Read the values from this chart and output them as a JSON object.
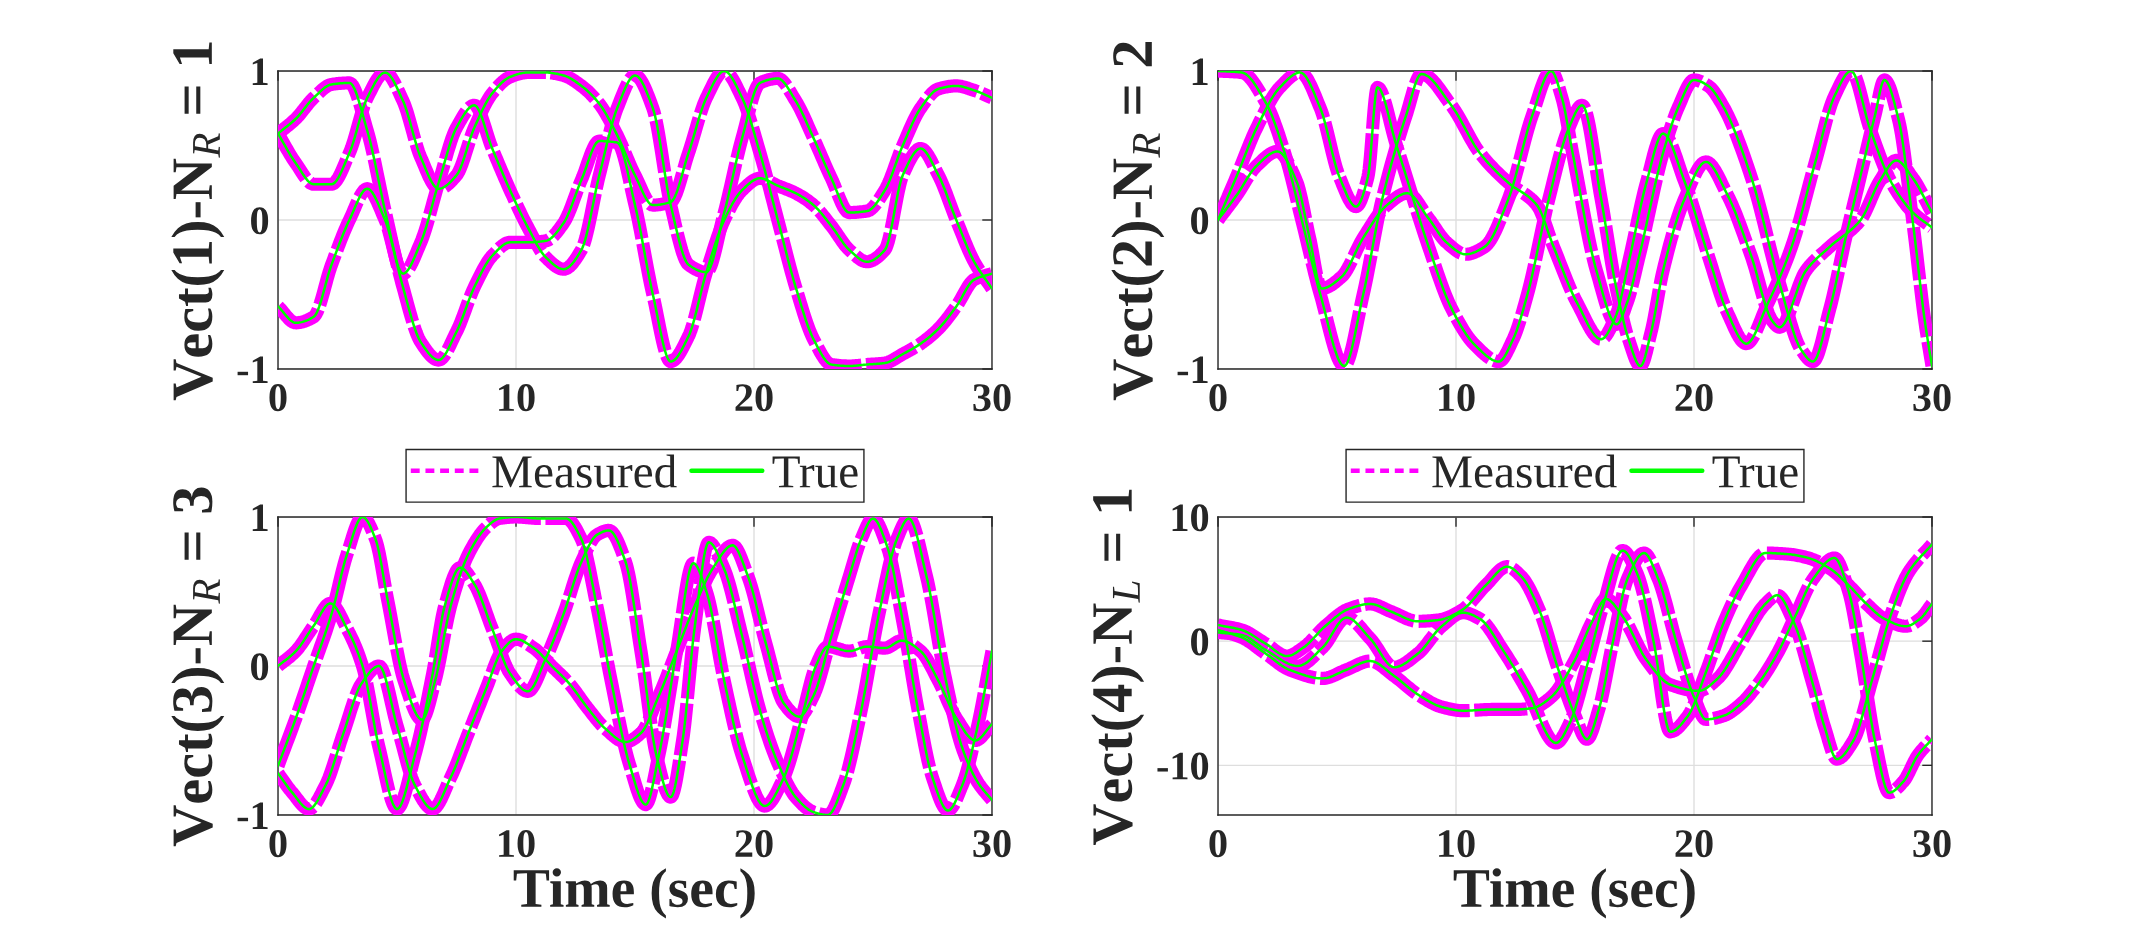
{
  "chart_data": [
    {
      "type": "line",
      "ylabel": "Vect(1)-N$_{R}$ = 1",
      "xlim": [
        0,
        30
      ],
      "xticks": [
        0,
        10,
        20,
        30
      ],
      "ylim": [
        -1,
        1
      ],
      "yticks": [
        -1,
        0,
        1
      ],
      "grid": true,
      "x": [
        0,
        0.75,
        1.5,
        2.25,
        3,
        3.75,
        4.5,
        5.25,
        6,
        6.75,
        7.5,
        8.25,
        9,
        9.75,
        10.5,
        11.25,
        12,
        12.75,
        13.5,
        14.25,
        15,
        15.75,
        16.5,
        17.25,
        18,
        18.75,
        19.5,
        20.25,
        21,
        21.75,
        22.5,
        23.25,
        24,
        24.75,
        25.5,
        26.25,
        27,
        27.75,
        28.5,
        29.25,
        30
      ],
      "series": [
        {
          "color": "#ff00ff",
          "line_style": "dashed",
          "values": [
            0.58,
            0.68,
            0.82,
            0.91,
            0.92,
            0.6,
            0.06,
            -0.45,
            -0.82,
            -0.94,
            -0.75,
            -0.45,
            -0.24,
            -0.15,
            -0.15,
            -0.14,
            -0.02,
            0.27,
            0.53,
            0.52,
            0.1,
            -0.5,
            -0.95,
            -0.78,
            -0.35,
            0.0,
            0.2,
            0.28,
            0.23,
            0.18,
            0.1,
            -0.04,
            -0.2,
            -0.28,
            -0.2,
            0.3,
            0.48,
            0.3,
            0.0,
            -0.28,
            -0.46
          ]
        },
        {
          "color": "#ff00ff",
          "line_style": "dashed",
          "values": [
            0.58,
            0.38,
            0.24,
            0.24,
            0.45,
            0.82,
            0.99,
            0.8,
            0.42,
            0.21,
            0.3,
            0.62,
            0.85,
            0.96,
            0.99,
            0.99,
            0.97,
            0.9,
            0.78,
            0.57,
            0.3,
            0.1,
            0.12,
            0.45,
            0.82,
            1.0,
            0.82,
            0.45,
            0.0,
            -0.45,
            -0.8,
            -0.97,
            -0.98,
            -0.97,
            -0.96,
            -0.9,
            -0.83,
            -0.73,
            -0.58,
            -0.4,
            -0.36
          ]
        },
        {
          "color": "#ff00ff",
          "line_style": "dashed",
          "values": [
            -0.58,
            -0.69,
            -0.65,
            -0.3,
            0.0,
            0.21,
            0.0,
            -0.36,
            -0.15,
            0.25,
            0.62,
            0.77,
            0.48,
            0.2,
            -0.05,
            -0.25,
            -0.33,
            -0.2,
            0.3,
            0.75,
            0.97,
            0.75,
            0.1,
            -0.3,
            -0.35,
            0.05,
            0.55,
            0.92,
            0.95,
            0.8,
            0.55,
            0.28,
            0.05,
            0.06,
            0.2,
            0.5,
            0.75,
            0.88,
            0.9,
            0.87,
            0.82
          ]
        },
        {
          "color": "#00ff00",
          "line_style": "solid",
          "values": [
            0.58,
            0.68,
            0.82,
            0.91,
            0.92,
            0.6,
            0.06,
            -0.45,
            -0.82,
            -0.94,
            -0.75,
            -0.45,
            -0.24,
            -0.15,
            -0.15,
            -0.14,
            -0.02,
            0.27,
            0.53,
            0.52,
            0.1,
            -0.5,
            -0.95,
            -0.78,
            -0.35,
            0.0,
            0.2,
            0.28,
            0.23,
            0.18,
            0.1,
            -0.04,
            -0.2,
            -0.28,
            -0.2,
            0.3,
            0.48,
            0.3,
            0.0,
            -0.28,
            -0.46
          ]
        },
        {
          "color": "#00ff00",
          "line_style": "solid",
          "values": [
            0.58,
            0.38,
            0.24,
            0.24,
            0.45,
            0.82,
            0.99,
            0.8,
            0.42,
            0.21,
            0.3,
            0.62,
            0.85,
            0.96,
            0.99,
            0.99,
            0.97,
            0.9,
            0.78,
            0.57,
            0.3,
            0.1,
            0.12,
            0.45,
            0.82,
            1.0,
            0.82,
            0.45,
            0.0,
            -0.45,
            -0.8,
            -0.97,
            -0.98,
            -0.97,
            -0.96,
            -0.9,
            -0.83,
            -0.73,
            -0.58,
            -0.4,
            -0.36
          ]
        },
        {
          "color": "#00ff00",
          "line_style": "solid",
          "values": [
            -0.58,
            -0.69,
            -0.65,
            -0.3,
            0.0,
            0.21,
            0.0,
            -0.36,
            -0.15,
            0.25,
            0.62,
            0.77,
            0.48,
            0.2,
            -0.05,
            -0.25,
            -0.33,
            -0.2,
            0.3,
            0.75,
            0.97,
            0.75,
            0.1,
            -0.3,
            -0.35,
            0.05,
            0.55,
            0.92,
            0.95,
            0.8,
            0.55,
            0.28,
            0.05,
            0.06,
            0.2,
            0.5,
            0.75,
            0.88,
            0.9,
            0.87,
            0.82
          ]
        }
      ]
    },
    {
      "type": "line",
      "ylabel": "Vect(2)-N$_{R}$ = 2",
      "xlim": [
        0,
        30
      ],
      "xticks": [
        0,
        10,
        20,
        30
      ],
      "ylim": [
        -1,
        1
      ],
      "yticks": [
        -1,
        0,
        1
      ],
      "grid": true,
      "series": [
        {
          "color": "#ff00ff",
          "line_style": "dashed",
          "x": [
            0,
            1,
            2,
            2.8,
            3.55,
            4.3,
            5.3,
            6.1,
            6.9,
            7.9,
            8.55,
            9.8,
            11,
            12.2,
            13.4,
            14.1,
            15.1,
            16.1,
            16.7,
            17.3,
            18,
            18.7,
            19.6,
            20.6,
            21.4,
            22.2,
            23.1,
            24.1,
            25.1,
            25.9,
            26.6,
            27.4,
            28.3,
            29.2,
            30
          ],
          "values": [
            1.0,
            0.99,
            0.79,
            0.45,
            -0.02,
            -0.5,
            -0.98,
            -0.5,
            0.14,
            0.7,
            0.98,
            0.77,
            0.45,
            0.25,
            0.1,
            -0.18,
            -0.56,
            -0.8,
            -0.65,
            -0.25,
            0.25,
            0.58,
            0.26,
            -0.24,
            -0.62,
            -0.83,
            -0.56,
            -0.18,
            0.39,
            0.83,
            1.0,
            0.61,
            0.25,
            0.05,
            -0.05
          ]
        },
        {
          "color": "#ff00ff",
          "line_style": "dashed",
          "x": [
            0,
            0.8,
            1.6,
            2.5,
            3.3,
            3.85,
            4.35,
            5.2,
            6.1,
            7.1,
            7.95,
            8.85,
            9.6,
            10.4,
            11.2,
            12.2,
            13.2,
            14,
            14.45,
            14.9,
            15.9,
            16.75,
            17.2,
            17.7,
            18.7,
            19.35,
            20,
            20.6,
            21.2,
            22.4,
            23.6,
            24.5,
            25,
            25.7,
            26.4,
            27,
            27.6,
            28,
            28.6,
            29.2,
            29.7,
            30
          ],
          "values": [
            0,
            0.17,
            0.36,
            0.46,
            0.26,
            -0.12,
            -0.46,
            -0.38,
            -0.12,
            0.1,
            0.18,
            0.01,
            -0.15,
            -0.23,
            -0.18,
            0.14,
            0.7,
            1.0,
            0.82,
            0.45,
            -0.34,
            -0.7,
            -0.55,
            -0.24,
            0.45,
            0.76,
            0.94,
            0.9,
            0.77,
            0.29,
            -0.43,
            -0.87,
            -0.95,
            -0.6,
            -0.1,
            0.3,
            0.7,
            0.94,
            0.67,
            -0.02,
            -0.68,
            -0.98
          ]
        },
        {
          "color": "#ff00ff",
          "line_style": "dashed",
          "x": [
            0,
            0.8,
            1.6,
            2.6,
            3.45,
            4.3,
            5.1,
            5.8,
            6.3,
            6.7,
            7.5,
            8.85,
            9.8,
            10.8,
            11.8,
            12.4,
            13,
            13.9,
            14.7,
            15.3,
            16.1,
            16.7,
            17.25,
            17.75,
            18.2,
            18.7,
            19.6,
            20.5,
            21.4,
            22.4,
            23.3,
            23.6,
            24.7,
            25.7,
            27,
            27.8,
            28.5,
            29.2,
            30
          ],
          "values": [
            0,
            0.3,
            0.61,
            0.89,
            0.99,
            0.75,
            0.29,
            0.09,
            0.29,
            0.89,
            0.5,
            -0.18,
            -0.59,
            -0.84,
            -0.95,
            -0.8,
            -0.5,
            0.14,
            0.6,
            0.77,
            0.14,
            -0.43,
            -0.8,
            -0.98,
            -0.75,
            -0.34,
            0.14,
            0.39,
            0.17,
            -0.24,
            -0.68,
            -0.72,
            -0.34,
            -0.18,
            0.0,
            0.26,
            0.4,
            0.28,
            0.05
          ]
        },
        {
          "color": "#00ff00",
          "line_style": "solid",
          "x": [
            0,
            1,
            2,
            2.8,
            3.55,
            4.3,
            5.3,
            6.1,
            6.9,
            7.9,
            8.55,
            9.8,
            11,
            12.2,
            13.4,
            14.1,
            15.1,
            16.1,
            16.7,
            17.3,
            18,
            18.7,
            19.6,
            20.6,
            21.4,
            22.2,
            23.1,
            24.1,
            25.1,
            25.9,
            26.6,
            27.4,
            28.3,
            29.2,
            30
          ],
          "values": [
            1.0,
            0.99,
            0.79,
            0.45,
            -0.02,
            -0.5,
            -0.98,
            -0.5,
            0.14,
            0.7,
            0.98,
            0.77,
            0.45,
            0.25,
            0.1,
            -0.18,
            -0.56,
            -0.8,
            -0.65,
            -0.25,
            0.25,
            0.58,
            0.26,
            -0.24,
            -0.62,
            -0.83,
            -0.56,
            -0.18,
            0.39,
            0.83,
            1.0,
            0.61,
            0.25,
            0.05,
            -0.05
          ]
        },
        {
          "color": "#00ff00",
          "line_style": "solid",
          "x": [
            0,
            0.8,
            1.6,
            2.5,
            3.3,
            3.85,
            4.35,
            5.2,
            6.1,
            7.1,
            7.95,
            8.85,
            9.6,
            10.4,
            11.2,
            12.2,
            13.2,
            14,
            14.45,
            14.9,
            15.9,
            16.75,
            17.2,
            17.7,
            18.7,
            19.35,
            20,
            20.6,
            21.2,
            22.4,
            23.6,
            24.5,
            25,
            25.7,
            26.4,
            27,
            27.6,
            28,
            28.6,
            29.2,
            29.7,
            30
          ],
          "values": [
            0,
            0.17,
            0.36,
            0.46,
            0.26,
            -0.12,
            -0.46,
            -0.38,
            -0.12,
            0.1,
            0.18,
            0.01,
            -0.15,
            -0.23,
            -0.18,
            0.14,
            0.7,
            1.0,
            0.82,
            0.45,
            -0.34,
            -0.7,
            -0.55,
            -0.24,
            0.45,
            0.76,
            0.94,
            0.9,
            0.77,
            0.29,
            -0.43,
            -0.87,
            -0.95,
            -0.6,
            -0.1,
            0.3,
            0.7,
            0.94,
            0.67,
            -0.02,
            -0.68,
            -0.98
          ]
        },
        {
          "color": "#00ff00",
          "line_style": "solid",
          "x": [
            0,
            0.8,
            1.6,
            2.6,
            3.45,
            4.3,
            5.1,
            5.8,
            6.3,
            6.7,
            7.5,
            8.85,
            9.8,
            10.8,
            11.8,
            12.4,
            13,
            13.9,
            14.7,
            15.3,
            16.1,
            16.7,
            17.25,
            17.75,
            18.2,
            18.7,
            19.6,
            20.5,
            21.4,
            22.4,
            23.3,
            23.6,
            24.7,
            25.7,
            27,
            27.8,
            28.5,
            29.2,
            30
          ],
          "values": [
            0,
            0.3,
            0.61,
            0.89,
            0.99,
            0.75,
            0.29,
            0.09,
            0.29,
            0.89,
            0.5,
            -0.18,
            -0.59,
            -0.84,
            -0.95,
            -0.8,
            -0.5,
            0.14,
            0.6,
            0.77,
            0.14,
            -0.43,
            -0.8,
            -0.98,
            -0.75,
            -0.34,
            0.14,
            0.39,
            0.17,
            -0.24,
            -0.68,
            -0.72,
            -0.34,
            -0.18,
            0.0,
            0.26,
            0.4,
            0.28,
            0.05
          ]
        }
      ]
    },
    {
      "type": "line",
      "xlabel": "Time (sec)",
      "ylabel": "Vect(3)-N$_{R}$ = 3",
      "xlim": [
        0,
        30
      ],
      "xticks": [
        0,
        10,
        20,
        30
      ],
      "ylim": [
        -1,
        1
      ],
      "yticks": [
        -1,
        0,
        1
      ],
      "grid": true,
      "legend": "top",
      "series": [
        {
          "name": "Measured",
          "color": "#ff00ff",
          "line_style": "dashed",
          "x": [
            0,
            0.75,
            1.5,
            2.2,
            2.9,
            3.55,
            4.25,
            5.0,
            5.75,
            6.5,
            7.0,
            7.65,
            8.25,
            9,
            9.75,
            10.5,
            11.25,
            12,
            12.75,
            13.4,
            13.9,
            14.6,
            15.25,
            15.9,
            16.5,
            17.0,
            17.5,
            18.1,
            18.75,
            19.5,
            20.25,
            21,
            21.75,
            22.5,
            23.1,
            23.75,
            24.5,
            25.25,
            26,
            26.5,
            27.25,
            28,
            28.75,
            29.4,
            30
          ],
          "values": [
            0,
            0.1,
            0.27,
            0.42,
            0.25,
            0.0,
            -0.55,
            -0.96,
            -0.6,
            -0.05,
            0.4,
            0.66,
            0.55,
            0.25,
            -0.05,
            -0.17,
            0.05,
            0.35,
            0.7,
            0.88,
            0.91,
            0.7,
            0.1,
            -0.6,
            -0.88,
            -0.5,
            0.25,
            0.83,
            0.65,
            0.2,
            -0.3,
            -0.65,
            -0.88,
            -0.98,
            -1.0,
            -0.8,
            -0.3,
            0.35,
            0.85,
            0.99,
            0.6,
            -0.05,
            -0.55,
            -0.78,
            -0.9
          ]
        },
        {
          "color": "#ff00ff",
          "line_style": "dashed",
          "x": [
            0,
            0.6,
            1.3,
            2,
            2.75,
            3.5,
            4.25,
            5.0,
            5.75,
            6.5,
            7.25,
            8,
            8.75,
            9.4,
            10.0,
            10.75,
            11.5,
            12.25,
            13,
            13.75,
            14.6,
            15.25,
            16,
            16.75,
            17.5,
            18.25,
            19.1,
            19.75,
            20.5,
            21.25,
            21.9,
            22.5,
            23.25,
            24,
            24.5,
            25.0,
            25.6,
            26.25,
            26.9,
            27.5,
            28.15,
            28.75,
            29.4,
            30
          ],
          "values": [
            -0.72,
            -0.85,
            -0.96,
            -0.8,
            -0.45,
            -0.12,
            0.0,
            -0.4,
            -0.8,
            -0.96,
            -0.75,
            -0.45,
            -0.15,
            0.1,
            0.18,
            0.12,
            0.0,
            -0.12,
            -0.28,
            -0.42,
            -0.51,
            -0.45,
            -0.2,
            0.1,
            0.4,
            0.65,
            0.81,
            0.6,
            0.15,
            -0.25,
            -0.34,
            -0.2,
            0.2,
            0.6,
            0.85,
            0.99,
            0.8,
            0.3,
            -0.3,
            -0.75,
            -0.97,
            -0.8,
            -0.4,
            0.1
          ]
        },
        {
          "color": "#ff00ff",
          "line_style": "dashed",
          "x": [
            0,
            0.75,
            1.5,
            2.25,
            2.9,
            3.55,
            4.1,
            4.6,
            5.3,
            6.05,
            6.6,
            7.25,
            8,
            8.75,
            9.3,
            10,
            11,
            12.1,
            12.75,
            13.4,
            14,
            14.75,
            15.45,
            16,
            16.75,
            17.45,
            18,
            18.75,
            19.5,
            20.45,
            21.25,
            22,
            22.6,
            23.1,
            24,
            24.75,
            25.5,
            26.2,
            27,
            27.75,
            28.5,
            29.3,
            30
          ],
          "values": [
            -0.67,
            -0.35,
            0.0,
            0.35,
            0.75,
            1.0,
            0.85,
            0.45,
            -0.1,
            -0.36,
            -0.1,
            0.4,
            0.75,
            0.93,
            0.99,
            1.0,
            0.99,
            0.99,
            0.85,
            0.4,
            -0.1,
            -0.65,
            -0.93,
            -0.6,
            0.1,
            0.69,
            0.5,
            -0.1,
            -0.6,
            -0.94,
            -0.75,
            -0.35,
            0.0,
            0.13,
            0.1,
            0.13,
            0.12,
            0.17,
            0.1,
            -0.1,
            -0.35,
            -0.5,
            -0.39
          ]
        },
        {
          "name": "True",
          "color": "#00ff00",
          "line_style": "solid",
          "x": [
            0,
            0.75,
            1.5,
            2.2,
            2.9,
            3.55,
            4.25,
            5.0,
            5.75,
            6.5,
            7.0,
            7.65,
            8.25,
            9,
            9.75,
            10.5,
            11.25,
            12,
            12.75,
            13.4,
            13.9,
            14.6,
            15.25,
            15.9,
            16.5,
            17.0,
            17.5,
            18.1,
            18.75,
            19.5,
            20.25,
            21,
            21.75,
            22.5,
            23.1,
            23.75,
            24.5,
            25.25,
            26,
            26.5,
            27.25,
            28,
            28.75,
            29.4,
            30
          ],
          "values": [
            0,
            0.1,
            0.27,
            0.42,
            0.25,
            0.0,
            -0.55,
            -0.96,
            -0.6,
            -0.05,
            0.4,
            0.66,
            0.55,
            0.25,
            -0.05,
            -0.17,
            0.05,
            0.35,
            0.7,
            0.88,
            0.91,
            0.7,
            0.1,
            -0.6,
            -0.88,
            -0.5,
            0.25,
            0.83,
            0.65,
            0.2,
            -0.3,
            -0.65,
            -0.88,
            -0.98,
            -1.0,
            -0.8,
            -0.3,
            0.35,
            0.85,
            0.99,
            0.6,
            -0.05,
            -0.55,
            -0.78,
            -0.9
          ]
        },
        {
          "color": "#00ff00",
          "line_style": "solid",
          "x": [
            0,
            0.6,
            1.3,
            2,
            2.75,
            3.5,
            4.25,
            5.0,
            5.75,
            6.5,
            7.25,
            8,
            8.75,
            9.4,
            10.0,
            10.75,
            11.5,
            12.25,
            13,
            13.75,
            14.6,
            15.25,
            16,
            16.75,
            17.5,
            18.25,
            19.1,
            19.75,
            20.5,
            21.25,
            21.9,
            22.5,
            23.25,
            24,
            24.5,
            25.0,
            25.6,
            26.25,
            26.9,
            27.5,
            28.15,
            28.75,
            29.4,
            30
          ],
          "values": [
            -0.72,
            -0.85,
            -0.96,
            -0.8,
            -0.45,
            -0.12,
            0.0,
            -0.4,
            -0.8,
            -0.96,
            -0.75,
            -0.45,
            -0.15,
            0.1,
            0.18,
            0.12,
            0.0,
            -0.12,
            -0.28,
            -0.42,
            -0.51,
            -0.45,
            -0.2,
            0.1,
            0.4,
            0.65,
            0.81,
            0.6,
            0.15,
            -0.25,
            -0.34,
            -0.2,
            0.2,
            0.6,
            0.85,
            0.99,
            0.8,
            0.3,
            -0.3,
            -0.75,
            -0.97,
            -0.8,
            -0.4,
            0.1
          ]
        },
        {
          "color": "#00ff00",
          "line_style": "solid",
          "x": [
            0,
            0.75,
            1.5,
            2.25,
            2.9,
            3.55,
            4.1,
            4.6,
            5.3,
            6.05,
            6.6,
            7.25,
            8,
            8.75,
            9.3,
            10,
            11,
            12.1,
            12.75,
            13.4,
            14,
            14.75,
            15.45,
            16,
            16.75,
            17.45,
            18,
            18.75,
            19.5,
            20.45,
            21.25,
            22,
            22.6,
            23.1,
            24,
            24.75,
            25.5,
            26.2,
            27,
            27.75,
            28.5,
            29.3,
            30
          ],
          "values": [
            -0.67,
            -0.35,
            0.0,
            0.35,
            0.75,
            1.0,
            0.85,
            0.45,
            -0.1,
            -0.36,
            -0.1,
            0.4,
            0.75,
            0.93,
            0.99,
            1.0,
            0.99,
            0.99,
            0.85,
            0.4,
            -0.1,
            -0.65,
            -0.93,
            -0.6,
            0.1,
            0.69,
            0.5,
            -0.1,
            -0.6,
            -0.94,
            -0.75,
            -0.35,
            0.0,
            0.13,
            0.1,
            0.13,
            0.12,
            0.17,
            0.1,
            -0.1,
            -0.35,
            -0.5,
            -0.39
          ]
        }
      ]
    },
    {
      "type": "line",
      "xlabel": "Time (sec)",
      "ylabel": "Vect(4)-N$_{L}$ = 1",
      "xlim": [
        0,
        30
      ],
      "xticks": [
        0,
        10,
        20,
        30
      ],
      "ylim": [
        -14,
        10
      ],
      "yticks": [
        -10,
        0,
        10
      ],
      "grid": true,
      "legend": "top",
      "series": [
        {
          "name": "Measured",
          "color": "#ff00ff",
          "line_style": "dashed",
          "x": [
            0,
            1,
            2,
            2.9,
            3.6,
            4.5,
            5.5,
            6.4,
            7.25,
            8.4,
            9.25,
            10.25,
            11.25,
            12.15,
            12.75,
            13.5,
            14.25,
            15,
            15.5,
            16,
            16.6,
            17.2,
            17.9,
            18.5,
            19.25,
            20,
            20.5,
            21.25,
            22,
            22.75,
            23.5,
            24.25,
            25,
            25.9,
            26.5,
            27,
            27.6,
            28.2,
            28.8,
            29.4,
            30
          ],
          "values": [
            1.3,
            0.9,
            -0.2,
            -1.2,
            -0.5,
            1.2,
            2.6,
            3.0,
            2.4,
            1.6,
            1.7,
            2.5,
            4.5,
            6.0,
            5.2,
            2.5,
            -2.0,
            -6.0,
            -7.9,
            -5.5,
            0,
            5.0,
            7.1,
            5.0,
            0,
            -4.5,
            -6.3,
            -6.0,
            -5.0,
            -3.3,
            -1.0,
            2.0,
            5.0,
            6.7,
            4.0,
            -1.0,
            -8.0,
            -12.2,
            -11.3,
            -9.2,
            -7.9
          ]
        },
        {
          "color": "#ff00ff",
          "line_style": "dashed",
          "x": [
            0,
            1,
            2,
            3.35,
            4.4,
            5.4,
            6.4,
            7.4,
            8.4,
            9.4,
            10.3,
            11,
            12,
            13,
            14.2,
            14.8,
            15.5,
            16.2,
            17.0,
            17.6,
            18.3,
            19.0,
            19.75,
            20.5,
            21.25,
            22,
            23,
            24,
            24.8,
            25.75,
            26.5,
            27.25,
            28,
            28.9,
            29.5,
            30
          ],
          "values": [
            0.7,
            0.5,
            -0.7,
            -2.0,
            -0.5,
            1.9,
            0.2,
            -2.1,
            -1.0,
            1.2,
            2.3,
            1.8,
            -0.8,
            -4.0,
            -8.2,
            -6.5,
            -2.0,
            3.0,
            7.3,
            5.5,
            0.0,
            -7.3,
            -6.0,
            -2.5,
            1.5,
            4.5,
            7.1,
            7.0,
            6.7,
            5.8,
            4.5,
            3.0,
            1.8,
            1.2,
            1.8,
            3.0
          ]
        },
        {
          "color": "#ff00ff",
          "line_style": "dashed",
          "x": [
            0,
            1,
            2,
            3,
            4.4,
            5.4,
            6.4,
            7.4,
            8.4,
            9.4,
            10.3,
            11.5,
            12.5,
            13.2,
            14,
            15,
            15.7,
            16.3,
            17,
            18,
            19,
            20.2,
            21,
            22,
            23,
            23.5,
            24.2,
            25,
            25.5,
            26,
            26.7,
            27.5,
            28.25,
            29,
            30
          ],
          "values": [
            0.9,
            0.3,
            -1.0,
            -2.3,
            -3.0,
            -2.3,
            -1.6,
            -2.8,
            -4.3,
            -5.3,
            -5.6,
            -5.5,
            -5.5,
            -5.4,
            -4.5,
            -1.5,
            1.5,
            3.4,
            2.0,
            -1.5,
            -3.5,
            -4.0,
            -3.0,
            0.0,
            3.0,
            3.7,
            1.5,
            -3.5,
            -7.0,
            -9.5,
            -8.0,
            -3.0,
            2.0,
            5.5,
            7.8
          ]
        },
        {
          "name": "True",
          "color": "#00ff00",
          "line_style": "solid",
          "x": [
            0,
            1,
            2,
            2.9,
            3.6,
            4.5,
            5.5,
            6.4,
            7.25,
            8.4,
            9.25,
            10.25,
            11.25,
            12.15,
            12.75,
            13.5,
            14.25,
            15,
            15.5,
            16,
            16.6,
            17.2,
            17.9,
            18.5,
            19.25,
            20,
            20.5,
            21.25,
            22,
            22.75,
            23.5,
            24.25,
            25,
            25.9,
            26.5,
            27,
            27.6,
            28.2,
            28.8,
            29.4,
            30
          ],
          "values": [
            1.3,
            0.9,
            -0.2,
            -1.2,
            -0.5,
            1.2,
            2.6,
            3.0,
            2.4,
            1.6,
            1.7,
            2.5,
            4.5,
            6.0,
            5.2,
            2.5,
            -2.0,
            -6.0,
            -7.9,
            -5.5,
            0,
            5.0,
            7.1,
            5.0,
            0,
            -4.5,
            -6.3,
            -6.0,
            -5.0,
            -3.3,
            -1.0,
            2.0,
            5.0,
            6.7,
            4.0,
            -1.0,
            -8.0,
            -12.2,
            -11.3,
            -9.2,
            -7.9
          ]
        },
        {
          "color": "#00ff00",
          "line_style": "solid",
          "x": [
            0,
            1,
            2,
            3.35,
            4.4,
            5.4,
            6.4,
            7.4,
            8.4,
            9.4,
            10.3,
            11,
            12,
            13,
            14.2,
            14.8,
            15.5,
            16.2,
            17.0,
            17.6,
            18.3,
            19.0,
            19.75,
            20.5,
            21.25,
            22,
            23,
            24,
            24.8,
            25.75,
            26.5,
            27.25,
            28,
            28.9,
            29.5,
            30
          ],
          "values": [
            0.7,
            0.5,
            -0.7,
            -2.0,
            -0.5,
            1.9,
            0.2,
            -2.1,
            -1.0,
            1.2,
            2.3,
            1.8,
            -0.8,
            -4.0,
            -8.2,
            -6.5,
            -2.0,
            3.0,
            7.3,
            5.5,
            0.0,
            -7.3,
            -6.0,
            -2.5,
            1.5,
            4.5,
            7.1,
            7.0,
            6.7,
            5.8,
            4.5,
            3.0,
            1.8,
            1.2,
            1.8,
            3.0
          ]
        },
        {
          "color": "#00ff00",
          "line_style": "solid",
          "x": [
            0,
            1,
            2,
            3,
            4.4,
            5.4,
            6.4,
            7.4,
            8.4,
            9.4,
            10.3,
            11.5,
            12.5,
            13.2,
            14,
            15,
            15.7,
            16.3,
            17,
            18,
            19,
            20.2,
            21,
            22,
            23,
            23.5,
            24.2,
            25,
            25.5,
            26,
            26.7,
            27.5,
            28.25,
            29,
            30
          ],
          "values": [
            0.9,
            0.3,
            -1.0,
            -2.3,
            -3.0,
            -2.3,
            -1.6,
            -2.8,
            -4.3,
            -5.3,
            -5.6,
            -5.5,
            -5.5,
            -5.4,
            -4.5,
            -1.5,
            1.5,
            3.4,
            2.0,
            -1.5,
            -3.5,
            -4.0,
            -3.0,
            0.0,
            3.0,
            3.7,
            1.5,
            -3.5,
            -7.0,
            -9.5,
            -8.0,
            -3.0,
            2.0,
            5.5,
            7.8
          ]
        }
      ]
    }
  ]
}
